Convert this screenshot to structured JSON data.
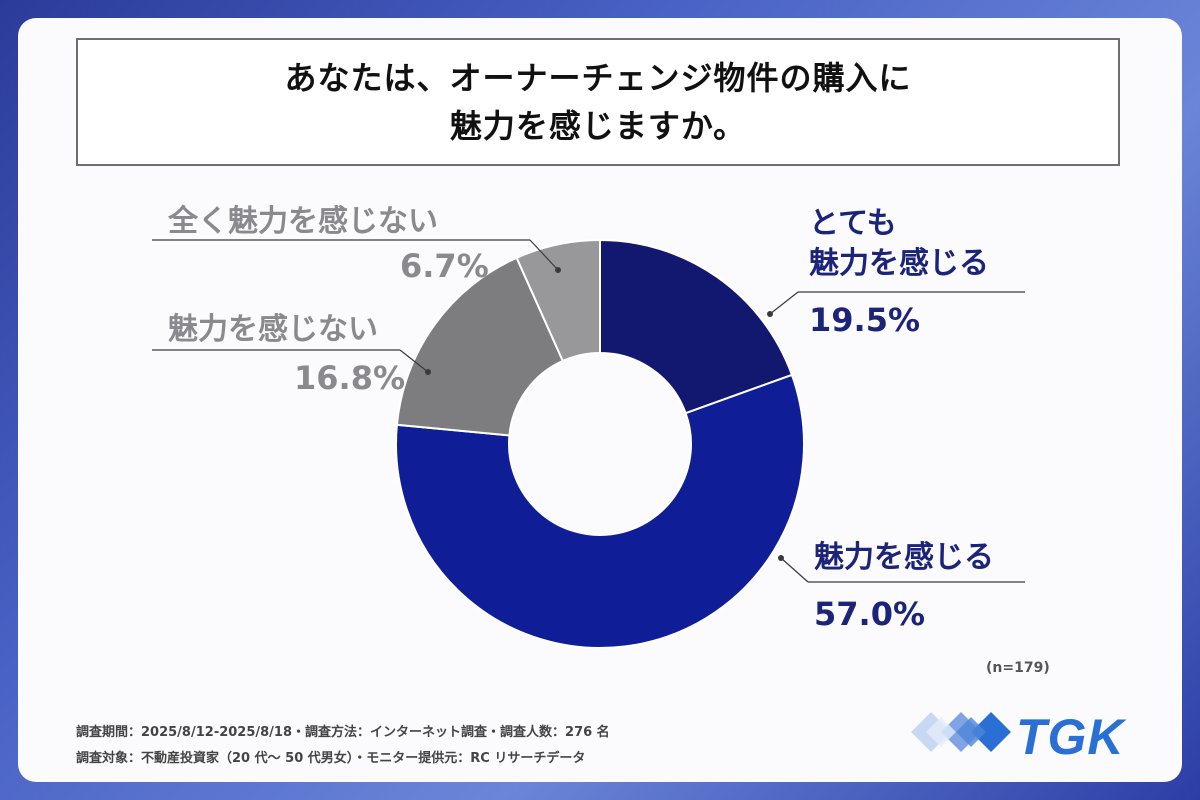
{
  "title": {
    "line1": "あなたは、オーナーチェンジ物件の購入に",
    "line2": "魅力を感じますか。"
  },
  "chart_data": {
    "type": "pie",
    "donut": true,
    "slices": [
      {
        "label": "とても\n魅力を感じる",
        "value": 19.5,
        "display": "19.5%",
        "color": "#12186f"
      },
      {
        "label": "魅力を感じる",
        "value": 57.0,
        "display": "57.0%",
        "color": "#0f1e96"
      },
      {
        "label": "魅力を感じない",
        "value": 16.8,
        "display": "16.8%",
        "color": "#7d7d80"
      },
      {
        "label": "全く魅力を感じない",
        "value": 6.7,
        "display": "6.7%",
        "color": "#98989b"
      }
    ]
  },
  "labels": {
    "very": {
      "line1": "とても",
      "line2": "魅力を感じる",
      "pct": "19.5%"
    },
    "yes": {
      "cat": "魅力を感じる",
      "pct": "57.0%"
    },
    "no": {
      "cat": "魅力を感じない",
      "pct": "16.8%"
    },
    "none": {
      "cat": "全く魅力を感じない",
      "pct": "6.7%"
    }
  },
  "sample_note": "(n=179)",
  "footnotes": {
    "line1": "調査期間：2025/8/12-2025/8/18・調査方法：インターネット調査・調査人数：276 名",
    "line2": "調査対象：不動産投資家（20 代〜 50 代男女）・モニター提供元：RC リサーチデータ"
  },
  "logo": {
    "text": "TGK"
  },
  "colors": {
    "navy_text": "#1b2478",
    "gray_text": "#8a8a8e",
    "accent": "#2a6fd3"
  }
}
